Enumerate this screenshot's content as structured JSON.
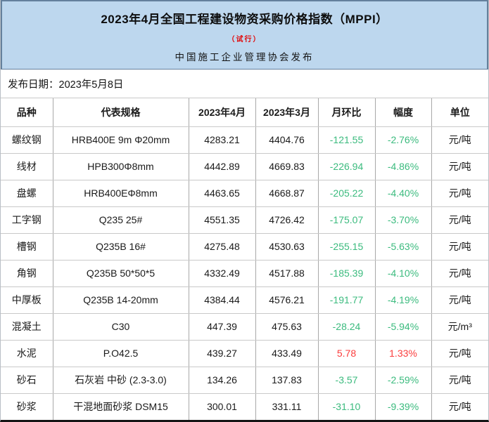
{
  "header": {
    "title": "2023年4月全国工程建设物资采购价格指数（MPPI）",
    "subtitle": "（试行）",
    "publisher": "中国施工企业管理协会发布"
  },
  "publish_date": {
    "label": "发布日期：",
    "value": "2023年5月8日"
  },
  "colors": {
    "banner_bg": "#bdd7ee",
    "banner_border": "#64809c",
    "down": "#3bbb7e",
    "up": "#fb3c3c"
  },
  "table": {
    "columns": [
      "品种",
      "代表规格",
      "2023年4月",
      "2023年3月",
      "月环比",
      "幅度",
      "单位"
    ],
    "rows": [
      {
        "name": "螺纹钢",
        "spec": "HRB400E 9m Φ20mm",
        "apr": "4283.21",
        "mar": "4404.76",
        "change": "-121.55",
        "pct": "-2.76%",
        "unit": "元/吨",
        "trend": "down"
      },
      {
        "name": "线材",
        "spec": "HPB300Φ8mm",
        "apr": "4442.89",
        "mar": "4669.83",
        "change": "-226.94",
        "pct": "-4.86%",
        "unit": "元/吨",
        "trend": "down"
      },
      {
        "name": "盘螺",
        "spec": "HRB400EΦ8mm",
        "apr": "4463.65",
        "mar": "4668.87",
        "change": "-205.22",
        "pct": "-4.40%",
        "unit": "元/吨",
        "trend": "down"
      },
      {
        "name": "工字钢",
        "spec": "Q235 25#",
        "apr": "4551.35",
        "mar": "4726.42",
        "change": "-175.07",
        "pct": "-3.70%",
        "unit": "元/吨",
        "trend": "down"
      },
      {
        "name": "槽钢",
        "spec": "Q235B 16#",
        "apr": "4275.48",
        "mar": "4530.63",
        "change": "-255.15",
        "pct": "-5.63%",
        "unit": "元/吨",
        "trend": "down"
      },
      {
        "name": "角钢",
        "spec": "Q235B 50*50*5",
        "apr": "4332.49",
        "mar": "4517.88",
        "change": "-185.39",
        "pct": "-4.10%",
        "unit": "元/吨",
        "trend": "down"
      },
      {
        "name": "中厚板",
        "spec": "Q235B 14-20mm",
        "apr": "4384.44",
        "mar": "4576.21",
        "change": "-191.77",
        "pct": "-4.19%",
        "unit": "元/吨",
        "trend": "down"
      },
      {
        "name": "混凝土",
        "spec": "C30",
        "apr": "447.39",
        "mar": "475.63",
        "change": "-28.24",
        "pct": "-5.94%",
        "unit": "元/m³",
        "trend": "down"
      },
      {
        "name": "水泥",
        "spec": "P.O42.5",
        "apr": "439.27",
        "mar": "433.49",
        "change": "5.78",
        "pct": "1.33%",
        "unit": "元/吨",
        "trend": "up"
      },
      {
        "name": "砂石",
        "spec": "石灰岩 中砂 (2.3-3.0)",
        "apr": "134.26",
        "mar": "137.83",
        "change": "-3.57",
        "pct": "-2.59%",
        "unit": "元/吨",
        "trend": "down"
      },
      {
        "name": "砂浆",
        "spec": "干混地面砂浆 DSM15",
        "apr": "300.01",
        "mar": "331.11",
        "change": "-31.10",
        "pct": "-9.39%",
        "unit": "元/吨",
        "trend": "down"
      }
    ]
  }
}
